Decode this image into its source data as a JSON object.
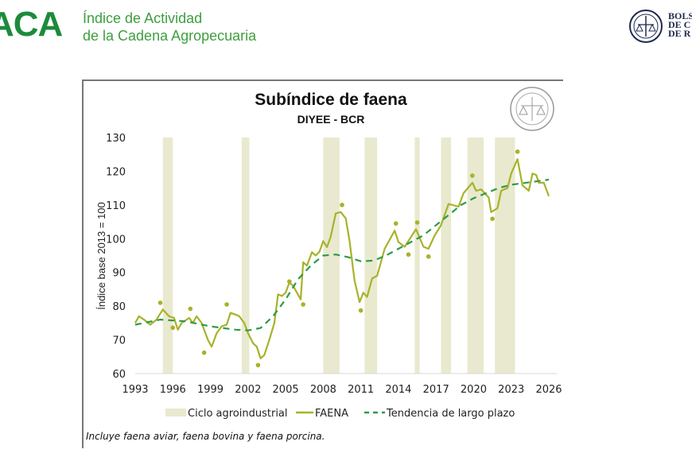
{
  "header": {
    "brand": "ACA",
    "subtitle_line1": "Índice de Actividad",
    "subtitle_line2": "de la Cadena Agropecuaria",
    "partner_text": [
      "BOLS",
      "DE C",
      "DE R"
    ]
  },
  "seal_text": "BOLSA DE COMERCIO DE ROSARIO",
  "footnote": "Incluye faena aviar, faena bovina y faena porcina.",
  "colors": {
    "brand_green": "#1d8a3c",
    "faena": "#a8b22a",
    "trend": "#2e9a4a",
    "band": "#e9e9cf",
    "dots": "#a8b22a"
  },
  "chart_data": {
    "type": "line",
    "title": "Subíndice de faena",
    "subtitle": "DIYEE - BCR",
    "xlabel": "",
    "ylabel": "Índice base 2013 = 100",
    "ylim": [
      60,
      130
    ],
    "xlim": [
      1993,
      2026
    ],
    "yticks": [
      "60",
      "70",
      "80",
      "90",
      "100",
      "110",
      "120",
      "130"
    ],
    "xticks": [
      "1993",
      "1996",
      "1999",
      "2002",
      "2005",
      "2008",
      "2011",
      "2014",
      "2017",
      "2020",
      "2023",
      "2026"
    ],
    "grid": false,
    "legend_position": "bottom",
    "legend": [
      "Ciclo agroindustrial",
      "FAENA",
      "Tendencia de largo plazo"
    ],
    "bands_name": "Ciclo agroindustrial",
    "bands": [
      [
        1995.2,
        1996.0
      ],
      [
        2001.5,
        2002.1
      ],
      [
        2008.0,
        2009.3
      ],
      [
        2011.3,
        2012.3
      ],
      [
        2015.3,
        2015.7
      ],
      [
        2017.4,
        2018.2
      ],
      [
        2019.5,
        2020.8
      ],
      [
        2021.7,
        2023.3
      ]
    ],
    "series": [
      {
        "name": "FAENA",
        "style": "solid",
        "x": [
          1993.0,
          1993.3,
          1993.7,
          1994.2,
          1994.7,
          1995.2,
          1995.7,
          1996.1,
          1996.4,
          1996.7,
          1997.3,
          1997.6,
          1997.9,
          1998.3,
          1998.8,
          1999.1,
          1999.5,
          1999.9,
          2000.3,
          2000.6,
          2001.0,
          2001.3,
          2001.7,
          2002.0,
          2002.4,
          2002.7,
          2003.0,
          2003.3,
          2003.7,
          2004.1,
          2004.4,
          2004.7,
          2005.0,
          2005.3,
          2005.6,
          2005.9,
          2006.2,
          2006.4,
          2006.7,
          2007.1,
          2007.4,
          2007.7,
          2008.0,
          2008.3,
          2008.6,
          2009.0,
          2009.4,
          2009.8,
          2010.1,
          2010.5,
          2010.9,
          2011.2,
          2011.5,
          2011.9,
          2012.3,
          2012.9,
          2013.7,
          2014.0,
          2014.5,
          2015.4,
          2016.0,
          2016.4,
          2016.9,
          2017.4,
          2018.0,
          2018.8,
          2019.2,
          2019.9,
          2020.2,
          2020.6,
          2021.2,
          2021.4,
          2021.9,
          2022.2,
          2022.7,
          2023.0,
          2023.5,
          2023.9,
          2024.4,
          2024.7,
          2025.0,
          2025.2,
          2025.6,
          2026.0
        ],
        "y": [
          75,
          77,
          76,
          74.5,
          76,
          79,
          77,
          76.5,
          73,
          75,
          76.5,
          75,
          77,
          75,
          70,
          68,
          72,
          74,
          74.5,
          78,
          77.5,
          77,
          75,
          72,
          69,
          68,
          64.5,
          65.5,
          70,
          75,
          83.5,
          83,
          84,
          87,
          86,
          84,
          82,
          93,
          92,
          96,
          95,
          96.1,
          99.3,
          97.5,
          100.6,
          107.5,
          107.9,
          106,
          99.3,
          87.5,
          81.2,
          84,
          82.7,
          88.2,
          89,
          97,
          102.4,
          99,
          97.6,
          102.8,
          97.6,
          97,
          101,
          104,
          110.3,
          109.5,
          113.5,
          116.6,
          114.2,
          114.6,
          112.2,
          107.9,
          109,
          114.2,
          115,
          119.3,
          123.6,
          115.8,
          114.2,
          119.3,
          118.9,
          116.6,
          116.6,
          112.6
        ]
      },
      {
        "name": "Tendencia de largo plazo",
        "style": "dashed",
        "x": [
          1993,
          1995,
          1997,
          1999,
          2001,
          2002,
          2003,
          2004,
          2005,
          2006,
          2007,
          2008,
          2009,
          2010,
          2011,
          2012,
          2013,
          2014,
          2015,
          2016,
          2017,
          2018,
          2019,
          2020,
          2021,
          2022,
          2023,
          2024,
          2025,
          2026
        ],
        "y": [
          74.5,
          76,
          75.5,
          74,
          73,
          72.8,
          73.5,
          77,
          82,
          88,
          92,
          95,
          95.3,
          94.5,
          93.3,
          93.5,
          95,
          97,
          99,
          101,
          104,
          107,
          110,
          112,
          113.5,
          115,
          116,
          116.5,
          117,
          117.5
        ]
      }
    ],
    "markers": {
      "x": [
        1995.0,
        1996.0,
        1997.4,
        1998.5,
        2000.3,
        2002.8,
        2005.3,
        2006.4,
        2009.5,
        2011.0,
        2013.8,
        2014.8,
        2015.5,
        2016.4,
        2019.9,
        2021.5,
        2023.5
      ],
      "y": [
        81,
        73.6,
        79.2,
        66.2,
        80.5,
        62.5,
        87.3,
        80.5,
        110,
        78.7,
        104.5,
        95.3,
        104.8,
        94.7,
        118.7,
        105.9,
        125.8
      ]
    }
  }
}
